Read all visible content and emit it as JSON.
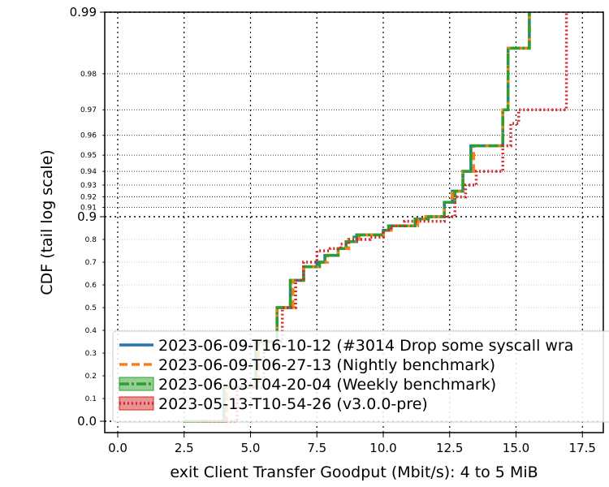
{
  "chart_data": {
    "type": "line",
    "xlabel": "exit Client Transfer Goodput (Mbit/s): 4 to 5 MiB",
    "ylabel": "CDF (tail log scale)",
    "xlim": [
      -0.5,
      18.2
    ],
    "x_ticks": [
      "0.0",
      "2.5",
      "5.0",
      "7.5",
      "10.0",
      "12.5",
      "15.0",
      "17.5"
    ],
    "x_tick_values": [
      0,
      2.5,
      5,
      7.5,
      10,
      12.5,
      15,
      17.5
    ],
    "y_scale": "tail-log",
    "y_major_ticks": [
      "0.0",
      "0.9",
      "0.99"
    ],
    "y_major_values": [
      0.0,
      0.9,
      0.99
    ],
    "y_minor_ticks": [
      "0.1",
      "0.2",
      "0.3",
      "0.4",
      "0.5",
      "0.6",
      "0.7",
      "0.8",
      "0.91",
      "0.92",
      "0.93",
      "0.94",
      "0.95",
      "0.96",
      "0.97",
      "0.98"
    ],
    "y_minor_values": [
      0.1,
      0.2,
      0.3,
      0.4,
      0.5,
      0.6,
      0.7,
      0.8,
      0.91,
      0.92,
      0.93,
      0.94,
      0.95,
      0.96,
      0.97,
      0.98
    ],
    "grid": true,
    "legend_position": "bottom-right",
    "series": [
      {
        "name": "2023-06-09-T16-10-12 (#3014 Drop some syscall wra",
        "color": "#1f77b4",
        "style": "solid",
        "x": [
          2.5,
          4.0,
          5.2,
          6.0,
          6.5,
          7.0,
          7.5,
          7.8,
          8.3,
          8.6,
          9.0,
          9.5,
          10.0,
          10.3,
          10.7,
          11.2,
          11.6,
          12.3,
          12.6,
          13.0,
          13.3,
          14.5,
          14.7,
          15.5,
          15.5
        ],
        "y": [
          0.0,
          0.15,
          0.35,
          0.5,
          0.62,
          0.68,
          0.7,
          0.73,
          0.76,
          0.79,
          0.82,
          0.82,
          0.84,
          0.86,
          0.86,
          0.89,
          0.9,
          0.915,
          0.925,
          0.94,
          0.955,
          0.97,
          0.985,
          0.985,
          0.99
        ]
      },
      {
        "name": "2023-06-09-T06-27-13 (Nightly benchmark)",
        "color": "#ff7f0e",
        "style": "dashed",
        "x": [
          2.6,
          4.1,
          5.3,
          6.0,
          6.6,
          7.0,
          7.6,
          7.9,
          8.3,
          8.7,
          9.1,
          9.6,
          10.0,
          10.3,
          10.8,
          11.3,
          11.6,
          12.3,
          12.6,
          13.0,
          13.4,
          14.5,
          14.7,
          15.5,
          15.5
        ],
        "y": [
          0.0,
          0.15,
          0.35,
          0.5,
          0.62,
          0.68,
          0.7,
          0.73,
          0.76,
          0.79,
          0.82,
          0.82,
          0.84,
          0.86,
          0.86,
          0.89,
          0.9,
          0.915,
          0.925,
          0.94,
          0.955,
          0.97,
          0.985,
          0.985,
          0.99
        ]
      },
      {
        "name": "2023-06-03-T04-20-04 (Weekly benchmark)",
        "color": "#2ca02c",
        "style": "dashdot",
        "x": [
          2.5,
          4.0,
          5.2,
          6.0,
          6.5,
          7.0,
          7.6,
          7.8,
          8.3,
          8.6,
          8.9,
          9.5,
          10.0,
          10.2,
          10.7,
          11.2,
          11.7,
          12.3,
          12.7,
          13.0,
          13.3,
          14.5,
          14.7,
          15.5,
          15.5
        ],
        "y": [
          0.0,
          0.15,
          0.35,
          0.5,
          0.62,
          0.68,
          0.7,
          0.73,
          0.76,
          0.79,
          0.82,
          0.82,
          0.84,
          0.86,
          0.86,
          0.89,
          0.9,
          0.915,
          0.925,
          0.94,
          0.955,
          0.97,
          0.985,
          0.985,
          0.99
        ]
      },
      {
        "name": "2023-05-13-T10-54-26 (v3.0.0-pre)",
        "color": "#d62728",
        "style": "dotted",
        "x": [
          3.0,
          4.5,
          5.5,
          6.2,
          6.7,
          7.0,
          7.5,
          8.0,
          8.4,
          8.7,
          9.0,
          9.5,
          10.0,
          10.3,
          10.8,
          11.5,
          12.3,
          12.7,
          13.1,
          13.5,
          14.5,
          14.8,
          15.1,
          16.9,
          16.9
        ],
        "y": [
          0.0,
          0.15,
          0.35,
          0.5,
          0.62,
          0.7,
          0.75,
          0.76,
          0.78,
          0.8,
          0.8,
          0.81,
          0.84,
          0.86,
          0.88,
          0.88,
          0.9,
          0.92,
          0.93,
          0.94,
          0.955,
          0.965,
          0.97,
          0.985,
          0.99
        ]
      }
    ]
  }
}
